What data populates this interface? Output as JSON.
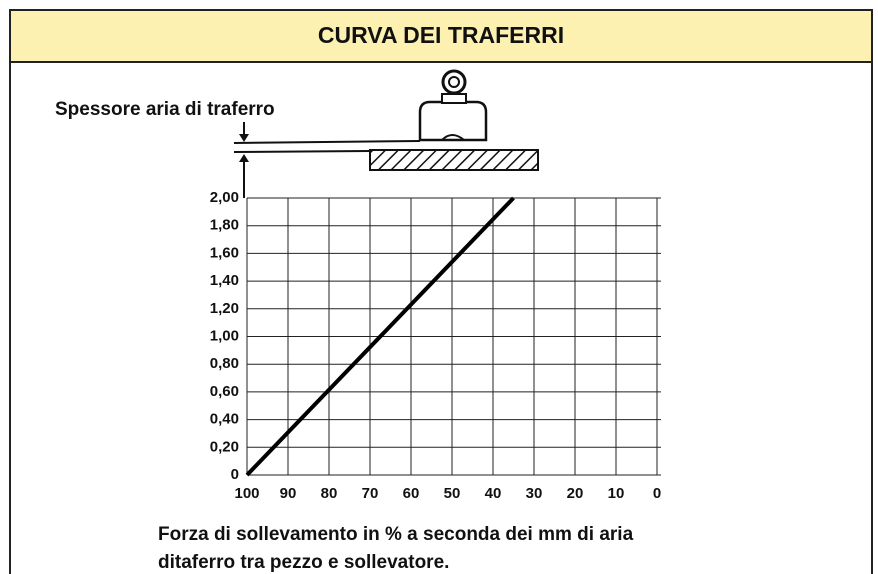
{
  "chart_data": {
    "type": "line",
    "title": "CURVA DEI TRAFERRI",
    "annotation": "Spessore aria di traferro",
    "caption": [
      "Forza di sollevamento in % a seconda dei mm di aria",
      "ditaferro tra pezzo e sollevatore."
    ],
    "x": [
      100,
      35
    ],
    "values": [
      0,
      2
    ],
    "color": "#000000",
    "xlim": [
      100,
      0
    ],
    "xticks": [
      100,
      90,
      80,
      70,
      60,
      50,
      40,
      30,
      20,
      10,
      0
    ],
    "ylim": [
      0,
      2
    ],
    "yticks": [
      0,
      {
        "value": 0.2,
        "label": "0,20"
      },
      {
        "value": 0.4,
        "label": "0,40"
      },
      {
        "value": 0.6,
        "label": "0,60"
      },
      {
        "value": 0.8,
        "label": "0,80"
      },
      {
        "value": 1,
        "label": "1,00"
      },
      {
        "value": 1.2,
        "label": "1,20"
      },
      {
        "value": 1.4,
        "label": "1,40"
      },
      {
        "value": 1.6,
        "label": "1,60"
      },
      {
        "value": 1.8,
        "label": "1,80"
      },
      {
        "value": 2,
        "label": "2,00"
      }
    ],
    "grid": true
  }
}
